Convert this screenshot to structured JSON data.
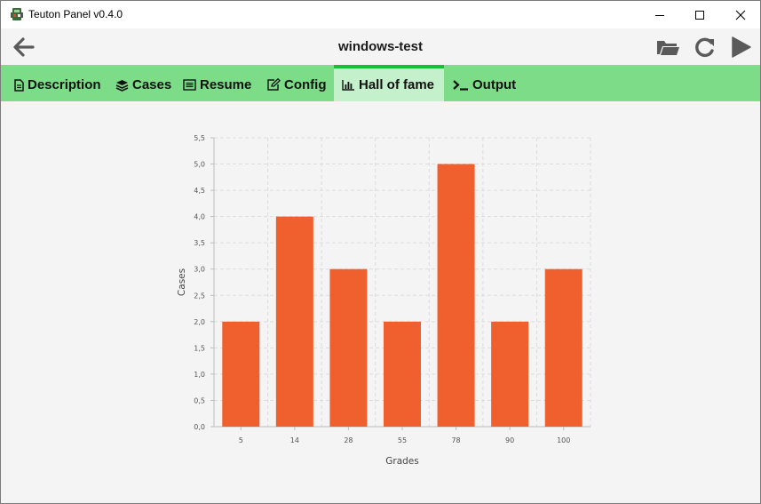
{
  "window": {
    "title": "Teuton Panel v0.4.0"
  },
  "header": {
    "title": "windows-test"
  },
  "tabs": [
    {
      "label": "Description",
      "icon": "file-icon"
    },
    {
      "label": "Cases",
      "icon": "layers-icon"
    },
    {
      "label": "Resume",
      "icon": "list-icon"
    },
    {
      "label": "Config",
      "icon": "edit-icon"
    },
    {
      "label": "Hall of fame",
      "icon": "bar-chart-icon",
      "active": true
    },
    {
      "label": "Output",
      "icon": "terminal-icon"
    }
  ],
  "colors": {
    "tab_bar": "#7cdc88",
    "tab_active": "#c5f0cc",
    "tab_active_indicator": "#16c032",
    "bar": "#f0602e"
  },
  "chart_data": {
    "type": "bar",
    "categories": [
      "5",
      "14",
      "28",
      "55",
      "78",
      "90",
      "100"
    ],
    "values": [
      2,
      4,
      3,
      2,
      5,
      2,
      3
    ],
    "xlabel": "Grades",
    "ylabel": "Cases",
    "ylim": [
      0,
      5.5
    ],
    "yticks": [
      "0,0",
      "0,5",
      "1,0",
      "1,5",
      "2,0",
      "2,5",
      "3,0",
      "3,5",
      "4,0",
      "4,5",
      "5,0",
      "5,5"
    ],
    "grid": true,
    "legend": "none"
  }
}
